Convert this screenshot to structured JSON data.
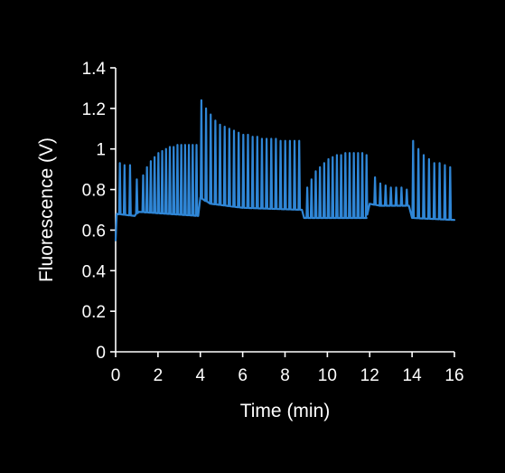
{
  "chart_data": {
    "type": "line",
    "title": "",
    "xlabel": "Time (min)",
    "ylabel": "Fluorescence (V)",
    "xlim": [
      0,
      16
    ],
    "ylim": [
      0,
      1.4
    ],
    "grid": false,
    "background": "#000000",
    "axis_color": "#ffffff",
    "x_ticks": [
      {
        "value": 0,
        "label": "0"
      },
      {
        "value": 2,
        "label": "2"
      },
      {
        "value": 4,
        "label": "4"
      },
      {
        "value": 6,
        "label": "6"
      },
      {
        "value": 8,
        "label": "8"
      },
      {
        "value": 10,
        "label": "10"
      },
      {
        "value": 12,
        "label": "12"
      },
      {
        "value": 14,
        "label": "14"
      },
      {
        "value": 16,
        "label": "16"
      }
    ],
    "y_ticks": [
      {
        "value": 0,
        "label": "0"
      },
      {
        "value": 0.2,
        "label": "0.2"
      },
      {
        "value": 0.4,
        "label": "0.4"
      },
      {
        "value": 0.6,
        "label": "0.6"
      },
      {
        "value": 0.8,
        "label": "0.8"
      },
      {
        "value": 1.0,
        "label": "1"
      },
      {
        "value": 1.2,
        "label": "1.2"
      },
      {
        "value": 1.4,
        "label": "1.4"
      }
    ],
    "series": [
      {
        "color": "#2f86d6",
        "baseline": [
          [
            0,
            0.55
          ],
          [
            0.05,
            0.68
          ],
          [
            0.9,
            0.67
          ],
          [
            1.1,
            0.69
          ],
          [
            3.9,
            0.67
          ],
          [
            4.0,
            0.76
          ],
          [
            4.5,
            0.73
          ],
          [
            6,
            0.71
          ],
          [
            8.8,
            0.7
          ],
          [
            8.9,
            0.66
          ],
          [
            11.85,
            0.66
          ],
          [
            12.0,
            0.73
          ],
          [
            12.5,
            0.72
          ],
          [
            13.85,
            0.72
          ],
          [
            14.0,
            0.66
          ],
          [
            16,
            0.65
          ]
        ],
        "peaks": [
          [
            0.2,
            0.93
          ],
          [
            0.42,
            0.92
          ],
          [
            0.68,
            0.92
          ],
          [
            1.0,
            0.85
          ],
          [
            1.3,
            0.87
          ],
          [
            1.48,
            0.91
          ],
          [
            1.66,
            0.94
          ],
          [
            1.84,
            0.96
          ],
          [
            2.02,
            0.98
          ],
          [
            2.2,
            0.99
          ],
          [
            2.38,
            1.0
          ],
          [
            2.56,
            1.01
          ],
          [
            2.74,
            1.01
          ],
          [
            2.92,
            1.02
          ],
          [
            3.1,
            1.02
          ],
          [
            3.28,
            1.02
          ],
          [
            3.46,
            1.02
          ],
          [
            3.64,
            1.02
          ],
          [
            3.82,
            1.02
          ],
          [
            4.05,
            1.24
          ],
          [
            4.27,
            1.2
          ],
          [
            4.49,
            1.17
          ],
          [
            4.71,
            1.14
          ],
          [
            4.93,
            1.12
          ],
          [
            5.15,
            1.11
          ],
          [
            5.37,
            1.1
          ],
          [
            5.59,
            1.09
          ],
          [
            5.81,
            1.08
          ],
          [
            6.03,
            1.07
          ],
          [
            6.25,
            1.07
          ],
          [
            6.47,
            1.06
          ],
          [
            6.69,
            1.06
          ],
          [
            6.91,
            1.05
          ],
          [
            7.13,
            1.05
          ],
          [
            7.35,
            1.05
          ],
          [
            7.57,
            1.05
          ],
          [
            7.79,
            1.04
          ],
          [
            8.01,
            1.04
          ],
          [
            8.23,
            1.04
          ],
          [
            8.45,
            1.04
          ],
          [
            8.67,
            1.04
          ],
          [
            9.05,
            0.81
          ],
          [
            9.25,
            0.85
          ],
          [
            9.45,
            0.89
          ],
          [
            9.65,
            0.91
          ],
          [
            9.85,
            0.93
          ],
          [
            10.05,
            0.95
          ],
          [
            10.25,
            0.96
          ],
          [
            10.45,
            0.97
          ],
          [
            10.65,
            0.97
          ],
          [
            10.85,
            0.98
          ],
          [
            11.05,
            0.98
          ],
          [
            11.25,
            0.98
          ],
          [
            11.45,
            0.98
          ],
          [
            11.65,
            0.98
          ],
          [
            11.85,
            0.97
          ],
          [
            12.25,
            0.86
          ],
          [
            12.5,
            0.83
          ],
          [
            12.75,
            0.82
          ],
          [
            13.0,
            0.81
          ],
          [
            13.25,
            0.81
          ],
          [
            13.5,
            0.81
          ],
          [
            13.75,
            0.8
          ],
          [
            14.05,
            1.04
          ],
          [
            14.3,
            1.0
          ],
          [
            14.55,
            0.97
          ],
          [
            14.8,
            0.95
          ],
          [
            15.05,
            0.93
          ],
          [
            15.3,
            0.93
          ],
          [
            15.55,
            0.92
          ],
          [
            15.8,
            0.91
          ]
        ]
      }
    ]
  }
}
